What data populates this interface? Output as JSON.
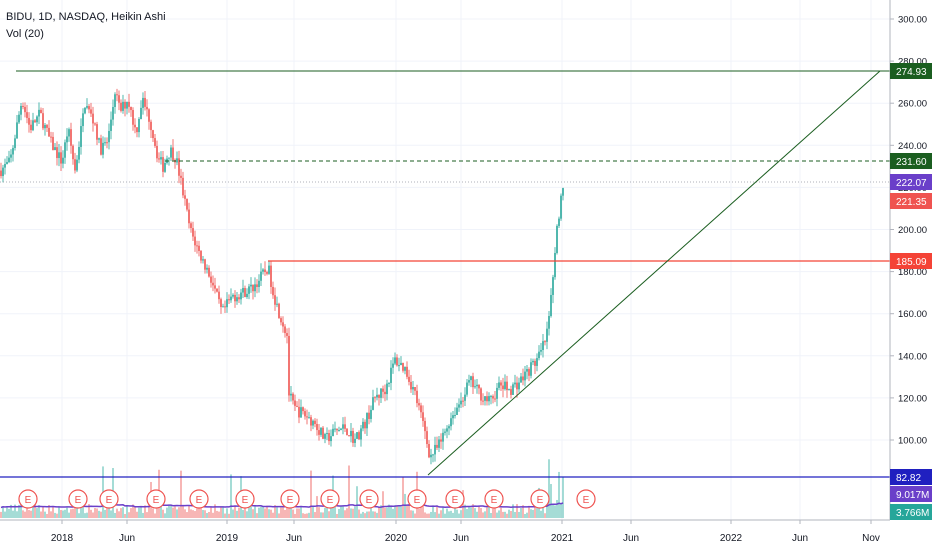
{
  "legend": {
    "symbol_line": "BIDU, 1D, NASDAQ, Heikin Ashi",
    "volume_line": "Vol (20)"
  },
  "price_axis": {
    "ticks": [
      "300.00",
      "280.00",
      "260.00",
      "240.00",
      "220.00",
      "200.00",
      "180.00",
      "160.00",
      "140.00",
      "120.00",
      "100.00"
    ],
    "labels": [
      {
        "text": "274.93",
        "color": "#1b5e20",
        "name": "price-label-274-93"
      },
      {
        "text": "231.60",
        "color": "#1b5e20",
        "name": "price-label-231-60"
      },
      {
        "text": "222.07",
        "color": "#6a3fc9",
        "name": "price-label-222-07"
      },
      {
        "text": "221.35",
        "color": "#ef5350",
        "name": "price-label-221-35"
      },
      {
        "text": "185.09",
        "color": "#f44336",
        "name": "price-label-185-09"
      },
      {
        "text": "82.82",
        "color": "#2020c0",
        "name": "price-label-82-82"
      },
      {
        "text": "9.017M",
        "color": "#6a3fc9",
        "name": "volume-label-9-017m"
      },
      {
        "text": "3.766M",
        "color": "#26a69a",
        "name": "volume-label-3-766m"
      }
    ]
  },
  "time_axis": {
    "ticks": [
      "2018",
      "Jun",
      "2019",
      "Jun",
      "2020",
      "Jun",
      "2021",
      "Jun",
      "2022",
      "Jun",
      "Nov"
    ]
  },
  "earnings_marker": "E",
  "colors": {
    "up": "#26a69a",
    "down": "#ef5350",
    "resistance": "#1b5e20",
    "support_red": "#f44336",
    "support_blue": "#2020c0",
    "volume_ma": "#6a3fc9"
  }
}
